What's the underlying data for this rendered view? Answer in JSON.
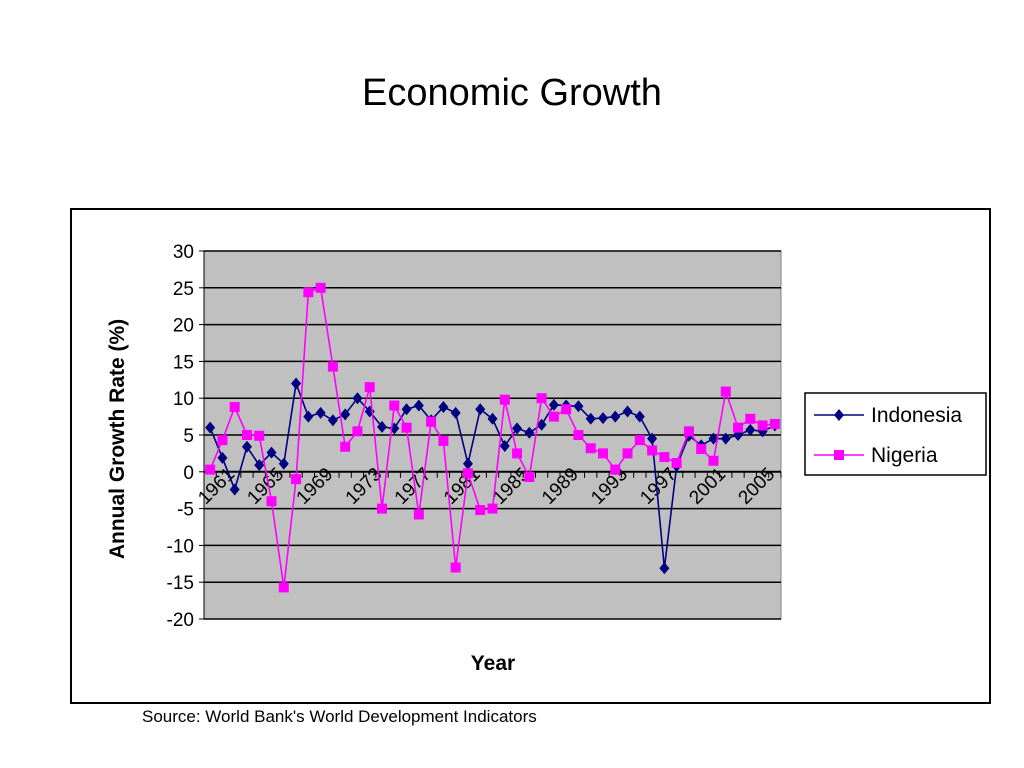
{
  "slide": {
    "title": "Economic Growth",
    "source": "Source: World Bank's World Development Indicators"
  },
  "chart_data": {
    "type": "line",
    "title": "",
    "xlabel": "Year",
    "ylabel": "Annual Growth Rate (%)",
    "ylim": [
      -20,
      30
    ],
    "yticks": [
      30,
      25,
      20,
      15,
      10,
      5,
      0,
      -5,
      -10,
      -15,
      -20
    ],
    "x": [
      1961,
      1962,
      1963,
      1964,
      1965,
      1966,
      1967,
      1968,
      1969,
      1970,
      1971,
      1972,
      1973,
      1974,
      1975,
      1976,
      1977,
      1978,
      1979,
      1980,
      1981,
      1982,
      1983,
      1984,
      1985,
      1986,
      1987,
      1988,
      1989,
      1990,
      1991,
      1992,
      1993,
      1994,
      1995,
      1996,
      1997,
      1998,
      1999,
      2000,
      2001,
      2002,
      2003,
      2004,
      2005,
      2006,
      2007
    ],
    "xtick_labels": [
      "1961",
      "1965",
      "1969",
      "1973",
      "1977",
      "1981",
      "1985",
      "1989",
      "1993",
      "1997",
      "2001",
      "2005"
    ],
    "grid": true,
    "plot_background": "#c0c0c0",
    "legend_position": "right",
    "series": [
      {
        "name": "Indonesia",
        "color": "#000080",
        "marker": "diamond",
        "values": [
          6.0,
          1.9,
          -2.4,
          3.4,
          0.9,
          2.6,
          1.1,
          12.0,
          7.5,
          8.0,
          7.0,
          7.8,
          10.0,
          8.2,
          6.1,
          5.9,
          8.5,
          9.0,
          7.0,
          8.8,
          8.0,
          1.1,
          8.5,
          7.2,
          3.5,
          5.9,
          5.3,
          6.4,
          9.1,
          9.0,
          8.9,
          7.2,
          7.3,
          7.5,
          8.2,
          7.5,
          4.5,
          -13.1,
          0.8,
          4.9,
          3.6,
          4.5,
          4.5,
          5.0,
          5.7,
          5.5,
          6.3
        ]
      },
      {
        "name": "Nigeria",
        "color": "#ff00ff",
        "marker": "square",
        "values": [
          0.3,
          4.3,
          8.8,
          5.0,
          4.9,
          -4.0,
          -15.7,
          -1.0,
          24.4,
          25.0,
          14.3,
          3.4,
          5.5,
          11.5,
          -5.0,
          9.0,
          6.0,
          -5.8,
          6.8,
          4.2,
          -13.0,
          -0.2,
          -5.2,
          -5.0,
          9.8,
          2.5,
          -0.7,
          10.0,
          7.5,
          8.5,
          5.0,
          3.2,
          2.5,
          0.3,
          2.5,
          4.3,
          2.9,
          2.0,
          1.2,
          5.5,
          3.1,
          1.5,
          10.9,
          6.0,
          7.2,
          6.3,
          6.5
        ]
      }
    ]
  }
}
